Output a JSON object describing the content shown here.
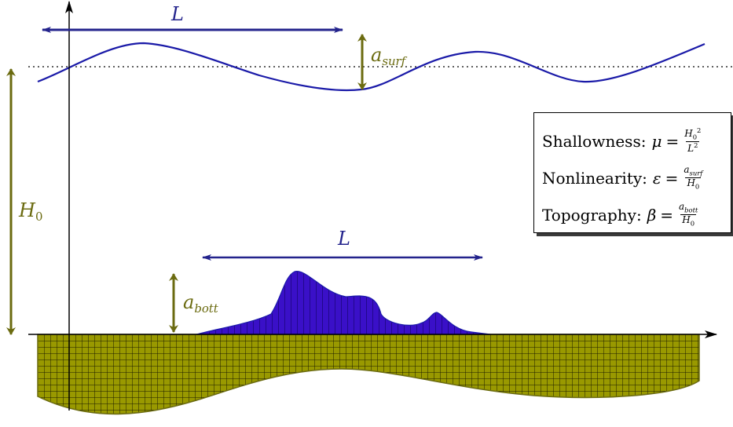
{
  "labels": {
    "top_length": "L",
    "bottom_length": "L",
    "surface_amplitude_base": "a",
    "surface_amplitude_sub": "surf",
    "bottom_amplitude_base": "a",
    "bottom_amplitude_sub": "bott",
    "depth_base": "H",
    "depth_sub": "0"
  },
  "info": {
    "shallowness": {
      "name": "Shallowness:",
      "symbol": "μ",
      "eq": "=",
      "num_base": "H",
      "num_sub": "0",
      "num_sup": "2",
      "den_base": "L",
      "den_sup": "2"
    },
    "nonlinearity": {
      "name": "Nonlinearity:",
      "symbol": "ε",
      "eq": "=",
      "num_base": "a",
      "num_sub": "surf",
      "den_base": "H",
      "den_sub": "0"
    },
    "topography": {
      "name": "Topography:",
      "symbol": "β",
      "eq": "=",
      "num_base": "a",
      "num_sub": "bott",
      "den_base": "H",
      "den_sub": "0"
    }
  },
  "colors": {
    "wave": "#1a1aa8",
    "bump_fill": "#3a10c8",
    "olive": "#6b6b10",
    "seabed_fill": "#999900",
    "axis": "#000000"
  }
}
